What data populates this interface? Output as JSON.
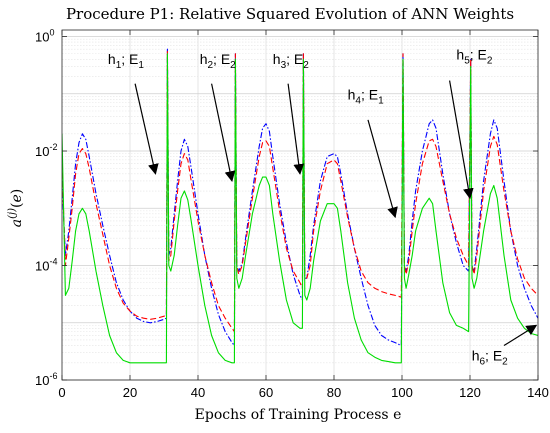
{
  "chart_data": {
    "type": "line",
    "title": "Procedure P1: Relative Squared Evolution of ANN Weights",
    "xlabel": "Epochs of Training Process e",
    "ylabel": "a^(j)(e)",
    "y_scale": "log",
    "xlim": [
      0,
      140
    ],
    "ylim": [
      1e-06,
      1.3
    ],
    "x_ticks": [
      0,
      20,
      40,
      60,
      80,
      100,
      120,
      140
    ],
    "y_ticks": [
      {
        "value": 1e-06,
        "base": "10",
        "exp": "-6"
      },
      {
        "value": 0.0001,
        "base": "10",
        "exp": "-4"
      },
      {
        "value": 0.01,
        "base": "10",
        "exp": "-2"
      },
      {
        "value": 1,
        "base": "10",
        "exp": "0"
      }
    ],
    "grid": true,
    "series": [
      {
        "color": "#0000ff",
        "dash": "dashdot",
        "x": [
          0,
          1,
          2,
          3,
          4,
          5,
          6,
          7,
          8,
          10,
          12,
          14,
          16,
          18,
          20,
          22,
          24,
          26,
          28,
          30,
          30.7,
          31,
          31.4,
          32,
          33,
          34,
          35,
          36,
          37,
          38,
          40,
          42,
          44,
          46,
          48,
          50,
          50.7,
          51,
          51.4,
          52,
          53,
          54,
          56,
          58,
          59,
          60,
          61,
          62,
          64,
          66,
          68,
          70,
          70.7,
          71,
          71.4,
          72,
          73,
          74,
          76,
          78,
          80,
          81,
          82,
          84,
          86,
          88,
          90,
          92,
          94,
          96,
          98,
          99.8,
          100.3,
          100.7,
          101.2,
          102,
          103,
          104,
          106,
          108,
          109,
          110,
          112,
          114,
          116,
          118,
          119.6,
          120.2,
          120.6,
          121.2,
          122,
          124,
          126,
          127,
          128,
          130,
          132,
          134,
          136,
          138,
          140
        ],
        "y": [
          0.003,
          0.00015,
          0.0004,
          0.0015,
          0.006,
          0.014,
          0.02,
          0.016,
          0.008,
          0.0018,
          0.0005,
          0.00015,
          5e-05,
          2.5e-05,
          1.6e-05,
          1.2e-05,
          1.05e-05,
          1e-05,
          1.05e-05,
          1.15e-05,
          1.2e-05,
          0.6,
          0.00015,
          0.0002,
          0.0008,
          0.003,
          0.01,
          0.016,
          0.012,
          0.005,
          0.0008,
          0.00015,
          4e-05,
          1.4e-05,
          7e-06,
          4.5e-06,
          4e-06,
          0.5,
          0.0001,
          8e-05,
          0.00011,
          0.0003,
          0.002,
          0.012,
          0.025,
          0.03,
          0.022,
          0.008,
          0.0012,
          0.00025,
          7e-05,
          3e-05,
          2.5e-05,
          0.5,
          6e-05,
          6e-05,
          0.00015,
          0.0005,
          0.003,
          0.008,
          0.009,
          0.008,
          0.004,
          0.0008,
          0.0002,
          6e-05,
          2e-05,
          9e-06,
          6e-06,
          5e-06,
          4.5e-06,
          4e-06,
          0.5,
          0.0001,
          8e-05,
          0.00015,
          0.0006,
          0.002,
          0.01,
          0.03,
          0.035,
          0.025,
          0.004,
          0.0008,
          0.00025,
          0.0001,
          8e-05,
          0.4,
          0.0001,
          8e-05,
          0.0002,
          0.003,
          0.02,
          0.035,
          0.025,
          0.003,
          0.0004,
          0.0001,
          4e-05,
          2e-05,
          1.2e-05
        ]
      },
      {
        "color": "#ff0000",
        "dash": "dashed",
        "x": [
          0,
          1,
          2,
          3,
          4,
          5,
          6,
          7,
          8,
          10,
          12,
          14,
          16,
          18,
          20,
          22,
          24,
          26,
          28,
          30,
          30.7,
          31,
          31.4,
          32,
          33,
          34,
          35,
          36,
          37,
          38,
          40,
          42,
          44,
          46,
          48,
          50,
          50.7,
          51,
          51.4,
          52,
          53,
          54,
          56,
          58,
          59,
          60,
          61,
          62,
          64,
          66,
          68,
          70,
          70.7,
          71,
          71.4,
          72,
          73,
          74,
          76,
          78,
          80,
          81,
          82,
          84,
          86,
          88,
          90,
          92,
          94,
          96,
          98,
          99.8,
          100.3,
          100.7,
          101.2,
          102,
          103,
          104,
          106,
          108,
          109,
          110,
          112,
          114,
          116,
          118,
          119.6,
          120.2,
          120.6,
          121.2,
          122,
          124,
          126,
          127,
          128,
          130,
          132,
          134,
          136,
          138,
          140
        ],
        "y": [
          0.006,
          0.0001,
          0.0003,
          0.001,
          0.004,
          0.009,
          0.011,
          0.009,
          0.005,
          0.0012,
          0.00035,
          0.0001,
          4e-05,
          2.2e-05,
          1.6e-05,
          1.3e-05,
          1.2e-05,
          1.15e-05,
          1.2e-05,
          1.3e-05,
          1.35e-05,
          0.55,
          0.00012,
          0.00015,
          0.0006,
          0.002,
          0.006,
          0.009,
          0.007,
          0.003,
          0.0006,
          0.00015,
          5e-05,
          2e-05,
          1.2e-05,
          8e-06,
          7e-06,
          0.5,
          0.0001,
          7e-05,
          0.0001,
          0.00025,
          0.0015,
          0.008,
          0.014,
          0.015,
          0.012,
          0.005,
          0.0009,
          0.0002,
          8e-05,
          5e-05,
          4e-05,
          0.5,
          7e-05,
          6e-05,
          0.0001,
          0.0004,
          0.002,
          0.006,
          0.007,
          0.006,
          0.003,
          0.0007,
          0.0002,
          8e-05,
          5e-05,
          4e-05,
          3.5e-05,
          3.2e-05,
          3e-05,
          2.8e-05,
          0.5,
          0.0001,
          7e-05,
          0.00012,
          0.0004,
          0.0012,
          0.006,
          0.015,
          0.016,
          0.012,
          0.003,
          0.0008,
          0.0003,
          0.00015,
          0.0001,
          0.4,
          0.0001,
          7e-05,
          0.00015,
          0.002,
          0.012,
          0.018,
          0.013,
          0.002,
          0.0004,
          0.00013,
          6e-05,
          4e-05,
          3e-05
        ]
      },
      {
        "color": "#00dd00",
        "dash": "solid",
        "x": [
          0,
          1,
          2,
          3,
          4,
          5,
          6,
          7,
          8,
          10,
          12,
          14,
          16,
          18,
          20,
          22,
          24,
          26,
          28,
          30,
          30.7,
          31,
          31.4,
          32,
          33,
          34,
          35,
          36,
          37,
          38,
          40,
          42,
          44,
          46,
          48,
          50,
          50.7,
          51,
          51.4,
          52,
          53,
          54,
          56,
          58,
          59,
          60,
          61,
          62,
          64,
          66,
          68,
          70,
          70.7,
          71,
          71.4,
          72,
          73,
          74,
          76,
          78,
          80,
          81,
          82,
          84,
          86,
          88,
          90,
          92,
          94,
          96,
          98,
          99.8,
          100.3,
          100.7,
          101.2,
          102,
          103,
          104,
          106,
          108,
          109,
          110,
          112,
          114,
          116,
          118,
          119.6,
          120.2,
          120.6,
          121.2,
          122,
          124,
          126,
          127,
          128,
          130,
          132,
          134,
          136,
          138,
          140
        ],
        "y": [
          0.02,
          3e-05,
          4e-05,
          0.00012,
          0.0004,
          0.0008,
          0.001,
          0.0008,
          0.0004,
          8e-05,
          2e-05,
          6e-06,
          3e-06,
          2.2e-06,
          2e-06,
          2e-06,
          2e-06,
          2e-06,
          2e-06,
          2e-06,
          2e-06,
          0.5,
          0.0001,
          8e-05,
          0.00015,
          0.0005,
          0.0015,
          0.002,
          0.0014,
          0.0006,
          0.0001,
          2e-05,
          6e-06,
          3e-06,
          2.2e-06,
          2e-06,
          2e-06,
          0.4,
          6e-05,
          4e-05,
          6e-05,
          0.00015,
          0.0008,
          0.0025,
          0.0035,
          0.0035,
          0.0025,
          0.0008,
          0.00012,
          2.5e-05,
          1e-05,
          8e-06,
          8e-06,
          0.4,
          3e-05,
          2.5e-05,
          4e-05,
          0.00012,
          0.0006,
          0.0012,
          0.0012,
          0.001,
          0.0004,
          5e-05,
          1.2e-05,
          5e-06,
          3e-06,
          2.5e-06,
          2.2e-06,
          2.1e-06,
          2e-06,
          2e-06,
          0.4,
          6e-05,
          4e-05,
          7e-05,
          0.00015,
          0.0004,
          0.001,
          0.0015,
          0.0012,
          0.0004,
          5e-05,
          1.5e-05,
          9e-06,
          8e-06,
          7e-06,
          0.3,
          6e-05,
          4e-05,
          6e-05,
          0.0004,
          0.0018,
          0.0025,
          0.0015,
          0.00015,
          2.5e-05,
          1.2e-05,
          8e-06,
          6.5e-06,
          6e-06
        ]
      }
    ],
    "annotations": [
      {
        "main": "h",
        "sub": "1",
        "rest": "; E",
        "sub2": "1",
        "text_x": 13.5,
        "text_y": 0.33,
        "arrow_from": [
          21.5,
          0.15
        ],
        "arrow_to": [
          27.5,
          0.004
        ]
      },
      {
        "main": "h",
        "sub": "2",
        "rest": "; E",
        "sub2": "2",
        "text_x": 40.5,
        "text_y": 0.33,
        "arrow_from": [
          44,
          0.15
        ],
        "arrow_to": [
          50,
          0.003
        ]
      },
      {
        "main": "h",
        "sub": "3",
        "rest": "; E",
        "sub2": "2",
        "text_x": 62,
        "text_y": 0.33,
        "arrow_from": [
          66.5,
          0.15
        ],
        "arrow_to": [
          70,
          0.004
        ]
      },
      {
        "main": "h",
        "sub": "4",
        "rest": "; E",
        "sub2": "1",
        "text_x": 84,
        "text_y": 0.08,
        "arrow_from": [
          90,
          0.035
        ],
        "arrow_to": [
          98,
          0.0007
        ]
      },
      {
        "main": "h",
        "sub": "5",
        "rest": "; E",
        "sub2": "2",
        "text_x": 116,
        "text_y": 0.4,
        "arrow_from": [
          114,
          0.17
        ],
        "arrow_to": [
          120,
          0.0015
        ]
      },
      {
        "main": "h",
        "sub": "6",
        "rest": "; E",
        "sub2": "2",
        "text_x": 120.5,
        "text_y": 2.2e-06,
        "arrow_from": [
          130,
          4e-06
        ],
        "arrow_to": [
          139.5,
          9e-06
        ]
      }
    ]
  }
}
